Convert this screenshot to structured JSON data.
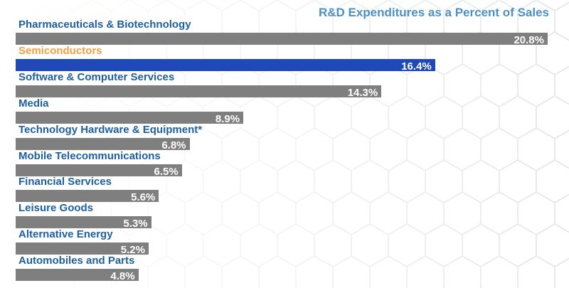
{
  "chart_data": {
    "type": "bar",
    "orientation": "horizontal",
    "title": "R&D Expenditures as a Percent of Sales",
    "categories": [
      "Pharmaceuticals & Biotechnology",
      "Semiconductors",
      "Software & Computer Services",
      "Media",
      "Technology Hardware & Equipment*",
      "Mobile Telecommunications",
      "Financial Services",
      "Leisure Goods",
      "Alternative Energy",
      "Automobiles and Parts"
    ],
    "values": [
      20.8,
      16.4,
      14.3,
      8.9,
      6.8,
      6.5,
      5.6,
      5.3,
      5.2,
      4.8
    ],
    "value_labels": [
      "20.8%",
      "16.4%",
      "14.3%",
      "8.9%",
      "6.8%",
      "6.5%",
      "5.6%",
      "5.3%",
      "5.2%",
      "4.8%"
    ],
    "highlight_index": 1,
    "xlim": [
      0,
      20.8
    ],
    "xlabel": "",
    "ylabel": "",
    "grid": false,
    "legend": "none"
  },
  "colors": {
    "bar": "#7f7f7f",
    "highlight_bar": "#1f49b6",
    "label": "#1e5fa0",
    "highlight_label": "#f0a040",
    "title": "#4a90c8"
  }
}
